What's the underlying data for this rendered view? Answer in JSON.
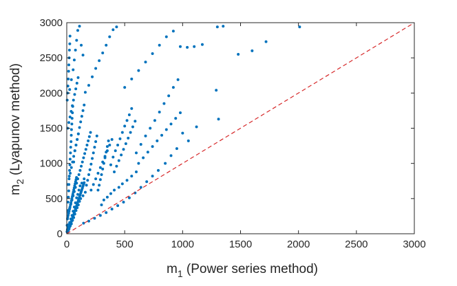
{
  "chart_data": {
    "type": "scatter",
    "title": "",
    "xlabel": {
      "base": "m",
      "subscript": "1",
      "rest": " (Power series method)"
    },
    "ylabel": {
      "base": "m",
      "subscript": "2",
      "rest": " (Lyapunov method)"
    },
    "xlim": [
      0,
      3000
    ],
    "ylim": [
      0,
      3000
    ],
    "x_ticks": [
      "0",
      "500",
      "1000",
      "1500",
      "2000",
      "2500",
      "3000"
    ],
    "y_ticks": [
      "0",
      "500",
      "1000",
      "1500",
      "2000",
      "2500",
      "3000"
    ],
    "grid": false,
    "legend": "none",
    "colors": {
      "points": "#0072BD",
      "reference_line": "#D62728",
      "axes": "#262626"
    },
    "reference_line": {
      "style": "dashed",
      "x": [
        0,
        3000
      ],
      "y": [
        0,
        3000
      ]
    },
    "series": [
      {
        "values": [
          [
            2,
            30
          ],
          [
            5,
            60
          ],
          [
            8,
            45
          ],
          [
            12,
            90
          ],
          [
            15,
            130
          ],
          [
            20,
            70
          ],
          [
            25,
            160
          ],
          [
            30,
            110
          ],
          [
            35,
            210
          ],
          [
            40,
            140
          ],
          [
            45,
            260
          ],
          [
            50,
            190
          ],
          [
            55,
            320
          ],
          [
            60,
            230
          ],
          [
            65,
            380
          ],
          [
            70,
            280
          ],
          [
            75,
            440
          ],
          [
            80,
            330
          ],
          [
            85,
            510
          ],
          [
            90,
            370
          ],
          [
            95,
            560
          ],
          [
            100,
            410
          ],
          [
            105,
            620
          ],
          [
            110,
            460
          ],
          [
            115,
            680
          ],
          [
            120,
            500
          ],
          [
            130,
            720
          ],
          [
            140,
            540
          ],
          [
            150,
            780
          ],
          [
            160,
            590
          ],
          [
            3,
            120
          ],
          [
            6,
            210
          ],
          [
            9,
            330
          ],
          [
            11,
            450
          ],
          [
            14,
            520
          ],
          [
            17,
            610
          ],
          [
            19,
            700
          ],
          [
            22,
            820
          ],
          [
            24,
            900
          ],
          [
            27,
            980
          ],
          [
            29,
            1060
          ],
          [
            32,
            1150
          ],
          [
            34,
            1230
          ],
          [
            37,
            1310
          ],
          [
            39,
            1400
          ],
          [
            41,
            1480
          ],
          [
            44,
            1560
          ],
          [
            46,
            1640
          ],
          [
            49,
            1720
          ],
          [
            52,
            1810
          ],
          [
            4,
            1900
          ],
          [
            7,
            2000
          ],
          [
            10,
            2100
          ],
          [
            13,
            2200
          ],
          [
            16,
            2310
          ],
          [
            18,
            2400
          ],
          [
            21,
            2500
          ],
          [
            23,
            2610
          ],
          [
            26,
            2700
          ],
          [
            28,
            2810
          ],
          [
            60,
            1020
          ],
          [
            70,
            1180
          ],
          [
            80,
            1260
          ],
          [
            90,
            1340
          ],
          [
            100,
            1420
          ],
          [
            110,
            1510
          ],
          [
            120,
            1590
          ],
          [
            130,
            1670
          ],
          [
            140,
            1750
          ],
          [
            150,
            1830
          ],
          [
            170,
            690
          ],
          [
            180,
            760
          ],
          [
            190,
            840
          ],
          [
            200,
            910
          ],
          [
            210,
            990
          ],
          [
            220,
            1070
          ],
          [
            230,
            1150
          ],
          [
            240,
            1230
          ],
          [
            250,
            1310
          ],
          [
            260,
            1390
          ],
          [
            270,
            620
          ],
          [
            280,
            690
          ],
          [
            290,
            770
          ],
          [
            300,
            840
          ],
          [
            310,
            920
          ],
          [
            320,
            1000
          ],
          [
            330,
            1080
          ],
          [
            340,
            1160
          ],
          [
            350,
            1240
          ],
          [
            360,
            1320
          ],
          [
            380,
            980
          ],
          [
            400,
            1090
          ],
          [
            420,
            1180
          ],
          [
            440,
            1260
          ],
          [
            460,
            1350
          ],
          [
            480,
            1440
          ],
          [
            500,
            1530
          ],
          [
            520,
            1610
          ],
          [
            540,
            1690
          ],
          [
            560,
            1780
          ],
          [
            600,
            1150
          ],
          [
            640,
            1270
          ],
          [
            680,
            1390
          ],
          [
            720,
            1500
          ],
          [
            760,
            1610
          ],
          [
            800,
            1730
          ],
          [
            840,
            1850
          ],
          [
            880,
            1960
          ],
          [
            920,
            2080
          ],
          [
            960,
            2190
          ],
          [
            25,
            2050
          ],
          [
            40,
            2190
          ],
          [
            55,
            2330
          ],
          [
            65,
            2470
          ],
          [
            75,
            2610
          ],
          [
            85,
            2750
          ],
          [
            95,
            2890
          ],
          [
            110,
            2950
          ],
          [
            125,
            2680
          ],
          [
            140,
            2540
          ],
          [
            160,
            2010
          ],
          [
            190,
            2110
          ],
          [
            220,
            2230
          ],
          [
            250,
            2350
          ],
          [
            280,
            2460
          ],
          [
            310,
            2570
          ],
          [
            340,
            2680
          ],
          [
            370,
            2800
          ],
          [
            400,
            2900
          ],
          [
            430,
            2940
          ],
          [
            500,
            2080
          ],
          [
            560,
            2200
          ],
          [
            620,
            2320
          ],
          [
            680,
            2440
          ],
          [
            740,
            2560
          ],
          [
            800,
            2680
          ],
          [
            860,
            2800
          ],
          [
            920,
            2880
          ],
          [
            980,
            2660
          ],
          [
            1040,
            2650
          ],
          [
            1100,
            2660
          ],
          [
            1170,
            2690
          ],
          [
            1300,
            2940
          ],
          [
            1350,
            2950
          ],
          [
            1480,
            2550
          ],
          [
            1600,
            2600
          ],
          [
            1720,
            2730
          ],
          [
            2010,
            2940
          ],
          [
            1290,
            2040
          ],
          [
            1310,
            1630
          ],
          [
            1120,
            1520
          ],
          [
            1000,
            1430
          ],
          [
            1050,
            1320
          ],
          [
            950,
            1210
          ],
          [
            900,
            1110
          ],
          [
            850,
            1000
          ],
          [
            790,
            900
          ],
          [
            740,
            820
          ],
          [
            690,
            740
          ],
          [
            640,
            660
          ],
          [
            590,
            580
          ],
          [
            540,
            510
          ],
          [
            490,
            450
          ],
          [
            440,
            400
          ],
          [
            390,
            350
          ],
          [
            340,
            300
          ],
          [
            290,
            260
          ],
          [
            240,
            220
          ],
          [
            190,
            180
          ],
          [
            145,
            150
          ],
          [
            300,
            410
          ],
          [
            320,
            480
          ],
          [
            350,
            520
          ],
          [
            380,
            570
          ],
          [
            410,
            620
          ],
          [
            450,
            660
          ],
          [
            480,
            710
          ],
          [
            520,
            760
          ],
          [
            560,
            820
          ],
          [
            600,
            880
          ],
          [
            15,
            300
          ],
          [
            25,
            360
          ],
          [
            35,
            420
          ],
          [
            45,
            480
          ],
          [
            55,
            540
          ],
          [
            65,
            600
          ],
          [
            75,
            660
          ],
          [
            85,
            720
          ],
          [
            95,
            780
          ],
          [
            105,
            840
          ],
          [
            115,
            900
          ],
          [
            125,
            960
          ],
          [
            135,
            1020
          ],
          [
            145,
            1080
          ],
          [
            155,
            1140
          ],
          [
            165,
            1200
          ],
          [
            175,
            1260
          ],
          [
            185,
            1320
          ],
          [
            195,
            1380
          ],
          [
            205,
            1440
          ],
          [
            10,
            700
          ],
          [
            20,
            780
          ],
          [
            30,
            860
          ],
          [
            40,
            940
          ],
          [
            50,
            1020
          ],
          [
            60,
            1100
          ],
          [
            70,
            1180
          ],
          [
            80,
            1260
          ],
          [
            90,
            1340
          ],
          [
            100,
            1420
          ],
          [
            8,
            1500
          ],
          [
            18,
            1580
          ],
          [
            28,
            1660
          ],
          [
            38,
            1740
          ],
          [
            48,
            1820
          ],
          [
            58,
            1900
          ],
          [
            68,
            1980
          ],
          [
            78,
            2060
          ],
          [
            88,
            2140
          ],
          [
            98,
            2220
          ],
          [
            210,
            620
          ],
          [
            230,
            700
          ],
          [
            250,
            780
          ],
          [
            270,
            860
          ],
          [
            290,
            940
          ],
          [
            310,
            1020
          ],
          [
            330,
            1100
          ],
          [
            350,
            1180
          ],
          [
            370,
            1260
          ],
          [
            390,
            1340
          ],
          [
            410,
            880
          ],
          [
            430,
            960
          ],
          [
            450,
            1040
          ],
          [
            470,
            1120
          ],
          [
            490,
            1200
          ],
          [
            510,
            1280
          ],
          [
            530,
            1360
          ],
          [
            550,
            1440
          ],
          [
            570,
            1520
          ],
          [
            590,
            1600
          ],
          [
            620,
            1000
          ],
          [
            660,
            1080
          ],
          [
            700,
            1160
          ],
          [
            740,
            1240
          ],
          [
            780,
            1320
          ],
          [
            820,
            1400
          ],
          [
            860,
            1480
          ],
          [
            900,
            1560
          ],
          [
            940,
            1640
          ],
          [
            980,
            1720
          ],
          [
            5,
            20
          ],
          [
            10,
            35
          ],
          [
            15,
            55
          ],
          [
            20,
            85
          ],
          [
            25,
            100
          ],
          [
            30,
            125
          ],
          [
            35,
            150
          ],
          [
            40,
            175
          ],
          [
            45,
            200
          ],
          [
            50,
            225
          ],
          [
            55,
            250
          ],
          [
            60,
            275
          ],
          [
            65,
            300
          ],
          [
            70,
            325
          ],
          [
            75,
            350
          ],
          [
            80,
            375
          ],
          [
            85,
            400
          ],
          [
            90,
            425
          ],
          [
            95,
            450
          ],
          [
            100,
            475
          ],
          [
            105,
            500
          ],
          [
            110,
            525
          ],
          [
            115,
            550
          ],
          [
            120,
            575
          ],
          [
            125,
            600
          ],
          [
            130,
            625
          ],
          [
            135,
            650
          ],
          [
            140,
            675
          ],
          [
            145,
            700
          ],
          [
            150,
            725
          ],
          [
            8,
            230
          ],
          [
            12,
            260
          ],
          [
            16,
            290
          ],
          [
            20,
            320
          ],
          [
            24,
            350
          ],
          [
            28,
            380
          ],
          [
            32,
            410
          ],
          [
            36,
            440
          ],
          [
            40,
            470
          ],
          [
            44,
            500
          ],
          [
            48,
            530
          ],
          [
            52,
            560
          ],
          [
            56,
            590
          ],
          [
            60,
            620
          ],
          [
            64,
            650
          ],
          [
            68,
            680
          ],
          [
            72,
            710
          ],
          [
            76,
            740
          ],
          [
            80,
            770
          ],
          [
            84,
            800
          ]
        ]
      }
    ]
  }
}
